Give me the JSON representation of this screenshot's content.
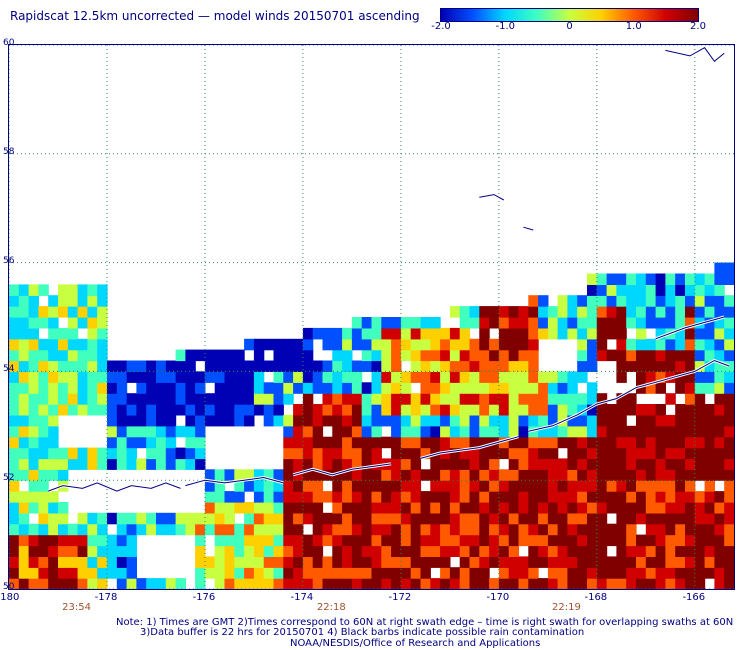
{
  "title": "Rapidscat 12.5km uncorrected — model winds 20150701 ascending",
  "colorbar": {
    "ticks": [
      "-2.0",
      "-1.0",
      "0",
      "1.0",
      "2.0"
    ],
    "range": [
      -2.0,
      2.0
    ],
    "colors": [
      "#0000b4",
      "#0050ff",
      "#00d7ff",
      "#40ffbf",
      "#c8ff40",
      "#ffd000",
      "#ff5a00",
      "#d00000",
      "#800000"
    ]
  },
  "map": {
    "x_ticks": [
      "-180",
      "-178",
      "-176",
      "-174",
      "-172",
      "-170",
      "-168",
      "-166"
    ],
    "y_ticks": [
      "60",
      "58",
      "56",
      "54",
      "52",
      "50"
    ],
    "lon_range": [
      -180,
      -165.2
    ],
    "lat_range": [
      50,
      60
    ],
    "gridlines": true,
    "times": [
      {
        "label": "23:54",
        "lon": -178.6
      },
      {
        "label": "22:18",
        "lon": -173.4
      },
      {
        "label": "22:19",
        "lon": -168.6
      }
    ]
  },
  "notes": {
    "line1": "Note: 1) Times are GMT 2)Times correspond to 60N at right swath edge – time is right swath for overlapping swaths at 60N",
    "line2": "3)Data buffer is 22 hrs for 20150701 4) Black barbs indicate possible rain contamination",
    "line3": "NOAA/NESDIS/Office of Research and Applications"
  }
}
